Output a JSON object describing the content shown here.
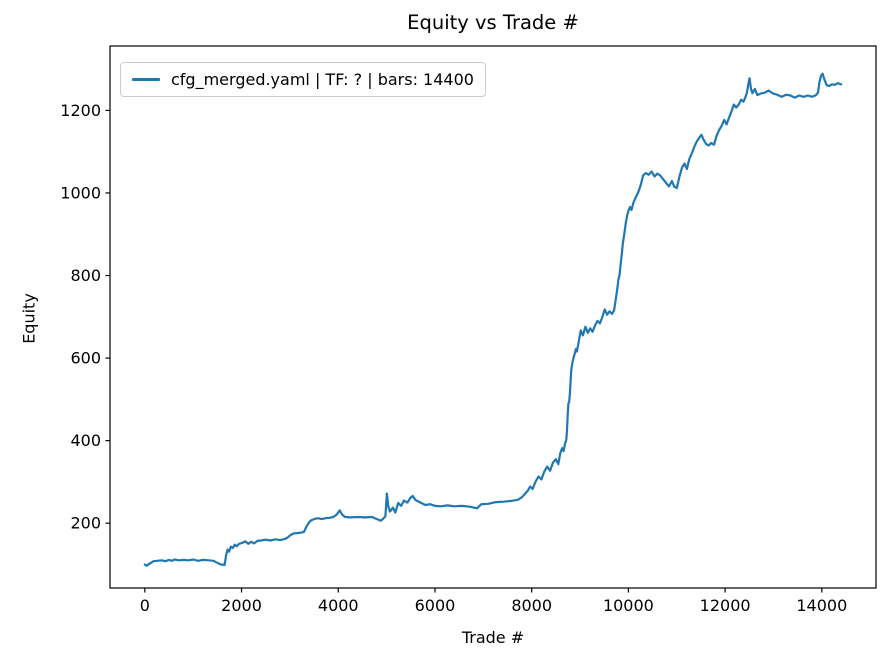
{
  "figure": {
    "background": "#ffffff"
  },
  "chart_data": {
    "type": "line",
    "title": "Equity vs Trade #",
    "xlabel": "Trade #",
    "ylabel": "Equity",
    "grid": false,
    "legend": {
      "position": "upper left",
      "entries": [
        {
          "label": "cfg_merged.yaml | TF: ? | bars: 14400",
          "color": "#1f77b4"
        }
      ]
    },
    "line_color": "#1f77b4",
    "line_width": 2.2,
    "xlim": [
      -720,
      15120
    ],
    "ylim": [
      43,
      1356
    ],
    "x_ticks": [
      0,
      2000,
      4000,
      6000,
      8000,
      10000,
      12000,
      14000
    ],
    "y_ticks": [
      200,
      400,
      600,
      800,
      1000,
      1200
    ],
    "series": [
      {
        "name": "cfg_merged.yaml | TF: ? | bars: 14400",
        "points": [
          [
            0,
            100
          ],
          [
            40,
            97
          ],
          [
            80,
            101
          ],
          [
            130,
            104
          ],
          [
            180,
            108
          ],
          [
            260,
            109
          ],
          [
            350,
            110
          ],
          [
            430,
            108
          ],
          [
            500,
            111
          ],
          [
            560,
            109
          ],
          [
            620,
            112
          ],
          [
            700,
            110
          ],
          [
            800,
            111
          ],
          [
            900,
            110
          ],
          [
            1000,
            112
          ],
          [
            1100,
            109
          ],
          [
            1200,
            111
          ],
          [
            1320,
            110
          ],
          [
            1420,
            109
          ],
          [
            1500,
            104
          ],
          [
            1570,
            100
          ],
          [
            1650,
            99
          ],
          [
            1680,
            122
          ],
          [
            1710,
            136
          ],
          [
            1740,
            131
          ],
          [
            1780,
            143
          ],
          [
            1820,
            140
          ],
          [
            1860,
            148
          ],
          [
            1900,
            144
          ],
          [
            1950,
            150
          ],
          [
            2010,
            152
          ],
          [
            2080,
            156
          ],
          [
            2140,
            150
          ],
          [
            2200,
            155
          ],
          [
            2260,
            151
          ],
          [
            2330,
            157
          ],
          [
            2400,
            158
          ],
          [
            2500,
            160
          ],
          [
            2600,
            158
          ],
          [
            2700,
            161
          ],
          [
            2800,
            159
          ],
          [
            2900,
            162
          ],
          [
            2950,
            165
          ],
          [
            3010,
            171
          ],
          [
            3070,
            175
          ],
          [
            3140,
            176
          ],
          [
            3220,
            177
          ],
          [
            3290,
            179
          ],
          [
            3340,
            191
          ],
          [
            3390,
            201
          ],
          [
            3440,
            207
          ],
          [
            3500,
            210
          ],
          [
            3580,
            212
          ],
          [
            3660,
            210
          ],
          [
            3740,
            212
          ],
          [
            3820,
            213
          ],
          [
            3900,
            215
          ],
          [
            3970,
            221
          ],
          [
            4030,
            231
          ],
          [
            4080,
            221
          ],
          [
            4140,
            215
          ],
          [
            4250,
            214
          ],
          [
            4400,
            215
          ],
          [
            4550,
            214
          ],
          [
            4700,
            215
          ],
          [
            4800,
            210
          ],
          [
            4880,
            206
          ],
          [
            4930,
            211
          ],
          [
            4975,
            217
          ],
          [
            5005,
            272
          ],
          [
            5035,
            241
          ],
          [
            5070,
            228
          ],
          [
            5130,
            238
          ],
          [
            5180,
            226
          ],
          [
            5240,
            249
          ],
          [
            5300,
            242
          ],
          [
            5360,
            255
          ],
          [
            5430,
            250
          ],
          [
            5490,
            261
          ],
          [
            5540,
            266
          ],
          [
            5600,
            256
          ],
          [
            5700,
            250
          ],
          [
            5800,
            244
          ],
          [
            5900,
            246
          ],
          [
            6000,
            242
          ],
          [
            6120,
            241
          ],
          [
            6260,
            243
          ],
          [
            6400,
            241
          ],
          [
            6550,
            242
          ],
          [
            6720,
            240
          ],
          [
            6870,
            236
          ],
          [
            6960,
            246
          ],
          [
            7100,
            247
          ],
          [
            7260,
            251
          ],
          [
            7420,
            252
          ],
          [
            7580,
            254
          ],
          [
            7720,
            257
          ],
          [
            7800,
            263
          ],
          [
            7860,
            271
          ],
          [
            7920,
            279
          ],
          [
            7970,
            289
          ],
          [
            8020,
            283
          ],
          [
            8080,
            301
          ],
          [
            8140,
            313
          ],
          [
            8200,
            306
          ],
          [
            8260,
            325
          ],
          [
            8320,
            337
          ],
          [
            8380,
            327
          ],
          [
            8440,
            347
          ],
          [
            8500,
            355
          ],
          [
            8550,
            343
          ],
          [
            8590,
            369
          ],
          [
            8630,
            382
          ],
          [
            8660,
            375
          ],
          [
            8690,
            393
          ],
          [
            8715,
            402
          ],
          [
            8730,
            425
          ],
          [
            8745,
            462
          ],
          [
            8760,
            490
          ],
          [
            8775,
            494
          ],
          [
            8790,
            515
          ],
          [
            8805,
            545
          ],
          [
            8820,
            572
          ],
          [
            8845,
            590
          ],
          [
            8870,
            603
          ],
          [
            8895,
            613
          ],
          [
            8915,
            622
          ],
          [
            8935,
            616
          ],
          [
            8960,
            631
          ],
          [
            8985,
            648
          ],
          [
            9015,
            667
          ],
          [
            9060,
            655
          ],
          [
            9110,
            676
          ],
          [
            9160,
            661
          ],
          [
            9210,
            672
          ],
          [
            9260,
            664
          ],
          [
            9310,
            679
          ],
          [
            9360,
            690
          ],
          [
            9410,
            684
          ],
          [
            9460,
            699
          ],
          [
            9510,
            718
          ],
          [
            9560,
            705
          ],
          [
            9610,
            713
          ],
          [
            9660,
            707
          ],
          [
            9705,
            716
          ],
          [
            9745,
            748
          ],
          [
            9775,
            772
          ],
          [
            9795,
            792
          ],
          [
            9815,
            800
          ],
          [
            9835,
            822
          ],
          [
            9860,
            848
          ],
          [
            9885,
            877
          ],
          [
            9915,
            901
          ],
          [
            9945,
            926
          ],
          [
            9975,
            946
          ],
          [
            10005,
            958
          ],
          [
            10035,
            966
          ],
          [
            10065,
            959
          ],
          [
            10105,
            977
          ],
          [
            10155,
            990
          ],
          [
            10205,
            1002
          ],
          [
            10255,
            1019
          ],
          [
            10305,
            1043
          ],
          [
            10360,
            1048
          ],
          [
            10420,
            1044
          ],
          [
            10480,
            1052
          ],
          [
            10540,
            1040
          ],
          [
            10600,
            1047
          ],
          [
            10660,
            1042
          ],
          [
            10720,
            1033
          ],
          [
            10780,
            1024
          ],
          [
            10840,
            1016
          ],
          [
            10900,
            1029
          ],
          [
            10950,
            1015
          ],
          [
            11000,
            1012
          ],
          [
            11060,
            1042
          ],
          [
            11110,
            1062
          ],
          [
            11160,
            1071
          ],
          [
            11210,
            1058
          ],
          [
            11260,
            1082
          ],
          [
            11310,
            1096
          ],
          [
            11360,
            1111
          ],
          [
            11410,
            1124
          ],
          [
            11460,
            1133
          ],
          [
            11510,
            1141
          ],
          [
            11560,
            1128
          ],
          [
            11610,
            1118
          ],
          [
            11660,
            1115
          ],
          [
            11710,
            1121
          ],
          [
            11770,
            1117
          ],
          [
            11830,
            1141
          ],
          [
            11880,
            1153
          ],
          [
            11930,
            1163
          ],
          [
            11980,
            1177
          ],
          [
            12030,
            1166
          ],
          [
            12080,
            1182
          ],
          [
            12130,
            1197
          ],
          [
            12180,
            1214
          ],
          [
            12230,
            1207
          ],
          [
            12280,
            1214
          ],
          [
            12330,
            1226
          ],
          [
            12380,
            1221
          ],
          [
            12420,
            1232
          ],
          [
            12450,
            1243
          ],
          [
            12480,
            1263
          ],
          [
            12505,
            1278
          ],
          [
            12535,
            1252
          ],
          [
            12565,
            1242
          ],
          [
            12615,
            1252
          ],
          [
            12665,
            1237
          ],
          [
            12740,
            1241
          ],
          [
            12820,
            1243
          ],
          [
            12900,
            1248
          ],
          [
            12990,
            1241
          ],
          [
            13080,
            1238
          ],
          [
            13170,
            1233
          ],
          [
            13260,
            1238
          ],
          [
            13350,
            1236
          ],
          [
            13440,
            1231
          ],
          [
            13530,
            1236
          ],
          [
            13620,
            1233
          ],
          [
            13710,
            1236
          ],
          [
            13800,
            1233
          ],
          [
            13880,
            1237
          ],
          [
            13920,
            1243
          ],
          [
            13950,
            1268
          ],
          [
            13985,
            1284
          ],
          [
            14015,
            1289
          ],
          [
            14055,
            1274
          ],
          [
            14100,
            1261
          ],
          [
            14150,
            1259
          ],
          [
            14210,
            1263
          ],
          [
            14270,
            1262
          ],
          [
            14330,
            1266
          ],
          [
            14400,
            1263
          ]
        ]
      }
    ]
  }
}
